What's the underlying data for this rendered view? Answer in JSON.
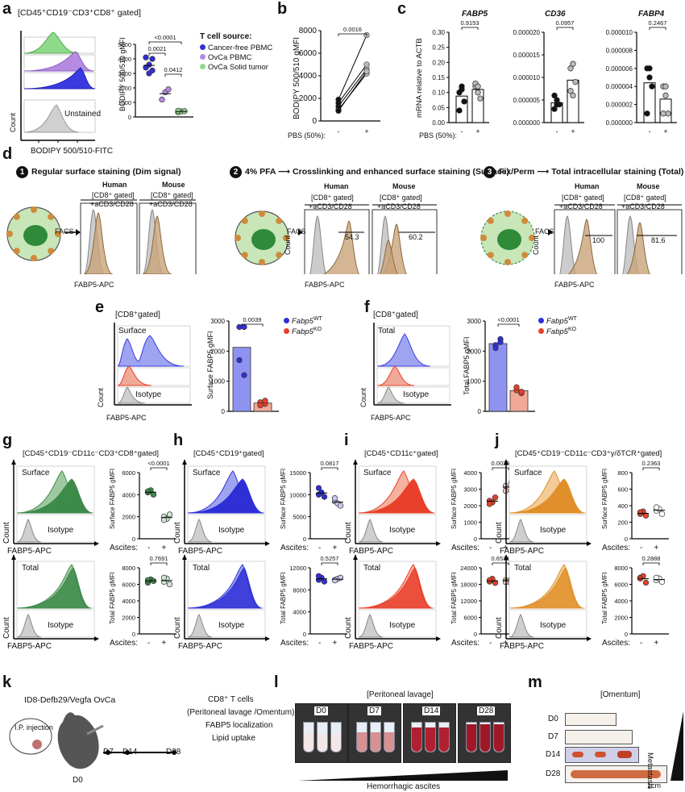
{
  "panels": {
    "a": {
      "label": "a",
      "gate": "[CD45⁺CD19⁻CD3⁺CD8⁺ gated]",
      "hist_xlabel": "BODIPY 500/510-FITC",
      "hist_ylabel": "Count",
      "unstained": "Unstained",
      "ylabel": "BODIPY 500/510 gMFI",
      "legend_title": "T cell source:",
      "legend": [
        "Cancer-free PBMC",
        "OvCa PBMC",
        "OvCa Solid tumor"
      ],
      "pvals": [
        "<0.0001",
        "0.0021",
        "0.0412"
      ],
      "yticks": [
        "0",
        "1000",
        "2000",
        "3000",
        "4000",
        "5000"
      ]
    },
    "b": {
      "label": "b",
      "ylabel": "BODIPY 500/510 gMFI",
      "pval": "0.0016",
      "yticks": [
        "0",
        "2000",
        "4000",
        "6000",
        "8000"
      ],
      "xlabel": "PBS (50%):",
      "xticks": [
        "-",
        "+"
      ]
    },
    "c": {
      "label": "c",
      "titles": [
        "FABP5",
        "CD36",
        "FABP4"
      ],
      "ylabel": "mRNA relative to ACTB",
      "pvals": [
        "0.9153",
        "0.0957",
        "0.2467"
      ],
      "yticks1": [
        "0.00",
        "0.05",
        "0.10",
        "0.15",
        "0.20",
        "0.25",
        "0.30"
      ],
      "yticks2": [
        "0.000000",
        "0.000005",
        "0.000010",
        "0.000015",
        "0.000020"
      ],
      "yticks3": [
        "0.000000",
        "0.000002",
        "0.000004",
        "0.000006",
        "0.000008",
        "0.000010"
      ],
      "xlabel": "PBS (50%):",
      "xticks": [
        "-",
        "+"
      ]
    },
    "d": {
      "label": "d",
      "step1": "Regular surface staining (Dim signal)",
      "step2a": "4% PFA",
      "step2b": "Crosslinking and enhanced surface staining (Surface)",
      "step3a": "Fix/Perm",
      "step3b": "Total intracellular staining (Total)",
      "nums": [
        "1",
        "2",
        "3"
      ],
      "human": "Human",
      "mouse": "Mouse",
      "gate1": "[CD8⁺ gated]",
      "gate2": "+aCD3/CD28",
      "facs": "FACS",
      "xlabel": "FABP5-APC",
      "ylabel": "Count",
      "vals": [
        "54.3",
        "60.2",
        "100",
        "81.6"
      ]
    },
    "e": {
      "label": "e",
      "gate": "[CD8⁺gated]",
      "surface": "Surface",
      "isotype": "Isotype",
      "xlabel": "FABP5-APC",
      "ylabel": "Count",
      "bar_ylabel": "Surface FABP5 gMFI",
      "pval": "0.0039",
      "yticks": [
        "0",
        "1000",
        "2000",
        "3000"
      ],
      "legend": [
        "Fabp5",
        "Fabp5"
      ],
      "legend_sup": [
        "WT",
        "KO"
      ]
    },
    "f": {
      "label": "f",
      "gate": "[CD8⁺gated]",
      "total": "Total",
      "isotype": "Isotype",
      "xlabel": "FABP5-APC",
      "ylabel": "Count",
      "bar_ylabel": "Total FABP5 gMFI",
      "pval": "<0.0001",
      "yticks": [
        "0",
        "1000",
        "2000",
        "3000"
      ],
      "legend": [
        "Fabp5",
        "Fabp5"
      ],
      "legend_sup": [
        "WT",
        "KO"
      ]
    },
    "g": {
      "label": "g",
      "gate": "[CD45⁺CD19⁻CD11c⁻CD3⁺CD8⁺gated]",
      "pvals": [
        "<0.0001",
        "0.7691"
      ],
      "yticks_top": [
        "0",
        "2000",
        "4000",
        "6000"
      ],
      "yticks_bot": [
        "0",
        "2000",
        "4000",
        "6000",
        "8000"
      ]
    },
    "h": {
      "label": "h",
      "gate": "[CD45⁺CD19⁺gated]",
      "pvals": [
        "0.0817",
        "0.5257"
      ],
      "yticks_top": [
        "0",
        "5000",
        "10000",
        "15000"
      ],
      "yticks_bot": [
        "0",
        "4000",
        "8000",
        "12000"
      ]
    },
    "i": {
      "label": "i",
      "gate": "[CD45⁺CD11c⁺gated]",
      "pvals": [
        "0.0035",
        "0.6531"
      ],
      "yticks_top": [
        "0",
        "1000",
        "2000",
        "3000",
        "4000"
      ],
      "yticks_bot": [
        "0",
        "6000",
        "12000",
        "18000",
        "24000"
      ]
    },
    "j": {
      "label": "j",
      "gate": "[CD45⁺CD19⁻CD11c⁻CD3⁺γ/δTCR⁺gated]",
      "pvals": [
        "0.2363",
        "0.2888"
      ],
      "yticks_top": [
        "0",
        "200",
        "400",
        "600",
        "800"
      ],
      "yticks_bot": [
        "0",
        "2000",
        "4000",
        "6000",
        "8000"
      ]
    },
    "common": {
      "surface": "Surface",
      "total": "Total",
      "isotype": "Isotype",
      "xlabel": "FABP5-APC",
      "ylabel": "Count",
      "surf_ylabel": "Surface FABP5 gMFI",
      "tot_ylabel": "Total FABP5 gMFI",
      "ascites": "Ascites:",
      "xticks": [
        "-",
        "+"
      ]
    },
    "k": {
      "label": "k",
      "model": "ID8-Defb29/Vegfa OvCa",
      "ip": "I.P. injection",
      "days": [
        "D0",
        "D7",
        "D14",
        "D28"
      ],
      "desc": [
        "CD8⁺ T cells",
        "(Peritoneal lavage /Omentum)",
        "FABP5 localization",
        "Lipid uptake"
      ]
    },
    "l": {
      "label": "l",
      "title": "[Peritoneal lavage]",
      "days": [
        "D0",
        "D7",
        "D14",
        "D28"
      ],
      "axis": "Hemorrhagic ascites"
    },
    "m": {
      "label": "m",
      "title": "[Omentum]",
      "days": [
        "D0",
        "D7",
        "D14",
        "D28"
      ],
      "side": "Metastasis",
      "scale": "1cm"
    }
  },
  "colors": {
    "green": "#3d8a4a",
    "lightgreen": "#8fd98a",
    "blue": "#2f2fd6",
    "purple": "#b48be0",
    "tan": "#c9a47a",
    "red": "#e8402a",
    "orange": "#e0902a",
    "grey": "#bdbdbd"
  }
}
